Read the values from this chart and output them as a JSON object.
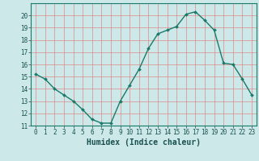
{
  "x": [
    0,
    1,
    2,
    3,
    4,
    5,
    6,
    7,
    8,
    9,
    10,
    11,
    12,
    13,
    14,
    15,
    16,
    17,
    18,
    19,
    20,
    21,
    22,
    23
  ],
  "y": [
    15.2,
    14.8,
    14.0,
    13.5,
    13.0,
    12.3,
    11.5,
    11.2,
    11.2,
    13.0,
    14.3,
    15.6,
    17.3,
    18.5,
    18.8,
    19.1,
    20.1,
    20.3,
    19.6,
    18.8,
    16.1,
    16.0,
    14.8,
    13.5
  ],
  "bg_color": "#cce8e8",
  "line_color": "#1a7a6a",
  "marker_color": "#1a7a6a",
  "grid_color": "#e08888",
  "xlabel": "Humidex (Indice chaleur)",
  "ylim": [
    11,
    21
  ],
  "xlim": [
    -0.5,
    23.5
  ],
  "yticks": [
    11,
    12,
    13,
    14,
    15,
    16,
    17,
    18,
    19,
    20
  ],
  "xticks": [
    0,
    1,
    2,
    3,
    4,
    5,
    6,
    7,
    8,
    9,
    10,
    11,
    12,
    13,
    14,
    15,
    16,
    17,
    18,
    19,
    20,
    21,
    22,
    23
  ]
}
